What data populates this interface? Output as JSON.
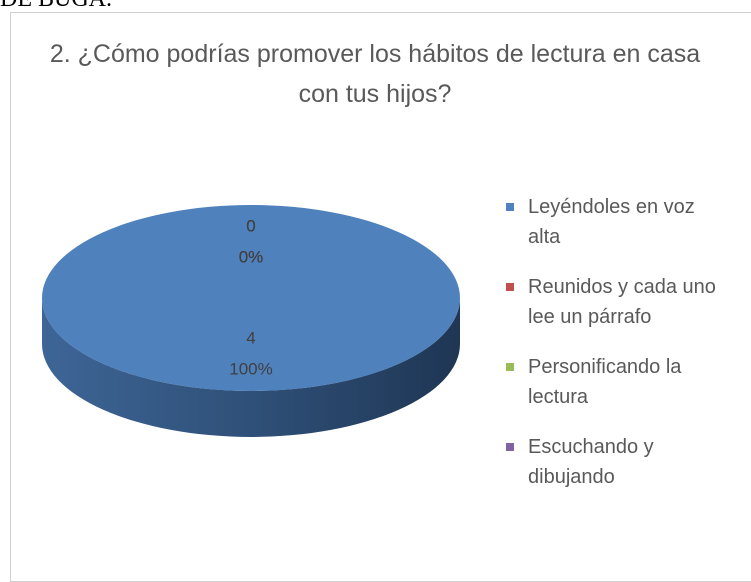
{
  "header_text": "DE BUGA.",
  "chart_data": {
    "type": "pie",
    "three_d": true,
    "title": "2. ¿Cómo podrías promover los hábitos de lectura en casa con tus hijos?",
    "categories": [
      "Leyéndoles en voz alta",
      "Reunidos y cada uno lee un párrafo",
      "Personificando la lectura",
      "Escuchando y dibujando"
    ],
    "values": [
      4,
      0,
      0,
      0
    ],
    "percent_labels": [
      "100%",
      "0%",
      "0%",
      "0%"
    ],
    "colors": [
      "#4f81bd",
      "#c0504d",
      "#9bbb59",
      "#8064a2"
    ],
    "legend": "right"
  }
}
